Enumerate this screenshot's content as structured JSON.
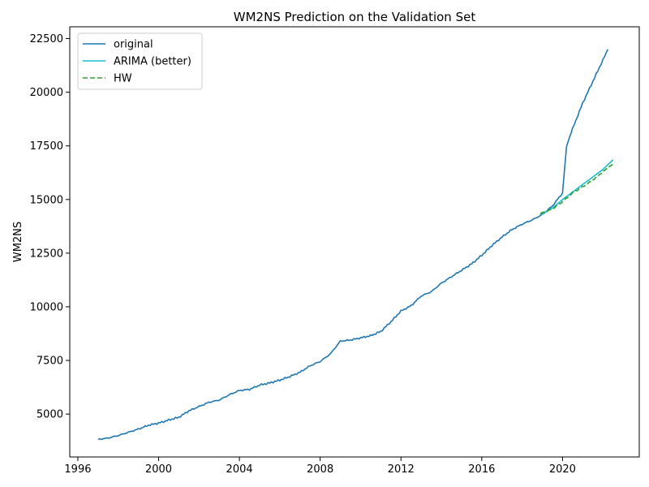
{
  "chart_data": {
    "type": "line",
    "title": "WM2NS Prediction on the Validation Set",
    "xlabel": "",
    "ylabel": "WM2NS",
    "xlim": [
      1995.6,
      2023.8
    ],
    "ylim": [
      3000,
      23050
    ],
    "x_ticks": [
      1996,
      2000,
      2004,
      2008,
      2012,
      2016,
      2020
    ],
    "x_tick_labels": [
      "1996",
      "2000",
      "2004",
      "2008",
      "2012",
      "2016",
      "2020"
    ],
    "y_ticks": [
      5000,
      7500,
      10000,
      12500,
      15000,
      17500,
      20000,
      22500
    ],
    "y_tick_labels": [
      "5000",
      "7500",
      "10000",
      "12500",
      "15000",
      "17500",
      "20000",
      "22500"
    ],
    "grid": false,
    "legend_position": "upper-left",
    "series": [
      {
        "name": "original",
        "color": "#1f77b4",
        "style": "solid",
        "points": [
          [
            1997.0,
            3820
          ],
          [
            1997.5,
            3880
          ],
          [
            1998.0,
            4000
          ],
          [
            1998.5,
            4150
          ],
          [
            1999.0,
            4300
          ],
          [
            1999.5,
            4480
          ],
          [
            2000.0,
            4580
          ],
          [
            2000.5,
            4720
          ],
          [
            2001.0,
            4850
          ],
          [
            2001.5,
            5150
          ],
          [
            2002.0,
            5350
          ],
          [
            2002.5,
            5550
          ],
          [
            2003.0,
            5650
          ],
          [
            2003.5,
            5900
          ],
          [
            2004.0,
            6100
          ],
          [
            2004.5,
            6150
          ],
          [
            2005.0,
            6350
          ],
          [
            2005.5,
            6450
          ],
          [
            2006.0,
            6580
          ],
          [
            2006.5,
            6750
          ],
          [
            2007.0,
            6950
          ],
          [
            2007.5,
            7250
          ],
          [
            2008.0,
            7450
          ],
          [
            2008.5,
            7800
          ],
          [
            2009.0,
            8400
          ],
          [
            2009.5,
            8450
          ],
          [
            2010.0,
            8550
          ],
          [
            2010.5,
            8650
          ],
          [
            2011.0,
            8850
          ],
          [
            2011.5,
            9300
          ],
          [
            2012.0,
            9800
          ],
          [
            2012.5,
            10050
          ],
          [
            2013.0,
            10500
          ],
          [
            2013.5,
            10700
          ],
          [
            2014.0,
            11100
          ],
          [
            2014.5,
            11400
          ],
          [
            2015.0,
            11700
          ],
          [
            2015.5,
            12000
          ],
          [
            2016.0,
            12400
          ],
          [
            2016.5,
            12850
          ],
          [
            2017.0,
            13250
          ],
          [
            2017.5,
            13600
          ],
          [
            2018.0,
            13850
          ],
          [
            2018.5,
            14050
          ],
          [
            2019.0,
            14300
          ],
          [
            2019.5,
            14700
          ],
          [
            2020.0,
            15300
          ],
          [
            2020.2,
            17500
          ],
          [
            2020.5,
            18300
          ],
          [
            2021.0,
            19500
          ],
          [
            2021.5,
            20500
          ],
          [
            2022.0,
            21500
          ],
          [
            2022.25,
            22000
          ]
        ]
      },
      {
        "name": "ARIMA (better)",
        "color": "#17becf",
        "style": "solid",
        "points": [
          [
            2018.9,
            14300
          ],
          [
            2019.5,
            14600
          ],
          [
            2020.0,
            15000
          ],
          [
            2020.5,
            15350
          ],
          [
            2021.0,
            15700
          ],
          [
            2021.5,
            16050
          ],
          [
            2022.0,
            16400
          ],
          [
            2022.5,
            16850
          ]
        ]
      },
      {
        "name": "HW",
        "color": "#2ca02c",
        "style": "dashed",
        "points": [
          [
            2018.9,
            14350
          ],
          [
            2019.5,
            14550
          ],
          [
            2020.0,
            14900
          ],
          [
            2020.5,
            15300
          ],
          [
            2021.0,
            15600
          ],
          [
            2021.5,
            15900
          ],
          [
            2022.0,
            16300
          ],
          [
            2022.5,
            16650
          ]
        ]
      }
    ]
  }
}
